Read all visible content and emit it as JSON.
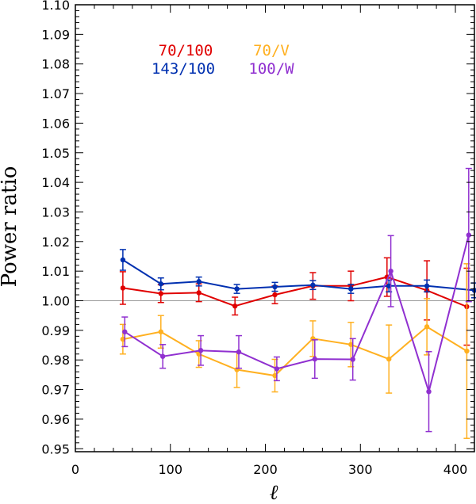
{
  "chart_data": {
    "type": "line",
    "title": "",
    "xlabel": "ℓ",
    "ylabel": "Power ratio",
    "xlim": [
      0,
      420
    ],
    "ylim": [
      0.949,
      1.1
    ],
    "x_ticks": [
      0,
      100,
      200,
      300,
      400
    ],
    "x_tick_labels": [
      "0",
      "100",
      "200",
      "300",
      "400"
    ],
    "y_ticks": [
      0.95,
      0.96,
      0.97,
      0.98,
      0.99,
      1.0,
      1.01,
      1.02,
      1.03,
      1.04,
      1.05,
      1.06,
      1.07,
      1.08,
      1.09,
      1.1
    ],
    "y_tick_labels": [
      "0.95",
      "0.96",
      "0.97",
      "0.98",
      "0.99",
      "1.00",
      "1.01",
      "1.02",
      "1.03",
      "1.04",
      "1.05",
      "1.06",
      "1.07",
      "1.08",
      "1.09",
      "1.10"
    ],
    "reference_line": 1.0,
    "reference_color": "#999999",
    "series": [
      {
        "name": "70/100",
        "color": "#e00000",
        "x": [
          50,
          90,
          130,
          168,
          210,
          250,
          290,
          328,
          370,
          412
        ],
        "y": [
          1.0043,
          1.0024,
          1.0027,
          0.9982,
          1.002,
          1.005,
          1.005,
          1.008,
          1.0035,
          0.998
        ],
        "err": [
          0.0055,
          0.003,
          0.003,
          0.003,
          0.003,
          0.0045,
          0.005,
          0.0065,
          0.01,
          0.013
        ]
      },
      {
        "name": "143/100",
        "color": "#0030b0",
        "x": [
          50,
          90,
          130,
          170,
          210,
          250,
          290,
          330,
          370,
          420
        ],
        "y": [
          1.0138,
          1.0057,
          1.0065,
          1.004,
          1.0047,
          1.0053,
          1.004,
          1.005,
          1.005,
          1.0035
        ],
        "err": [
          0.0035,
          0.002,
          0.0015,
          0.0015,
          0.0015,
          0.0015,
          0.0015,
          0.002,
          0.002,
          0.0025
        ]
      },
      {
        "name": "70/V",
        "color": "#ffb020",
        "x": [
          50,
          90,
          130,
          170,
          210,
          250,
          290,
          330,
          370,
          412
        ],
        "y": [
          0.987,
          0.9895,
          0.982,
          0.9767,
          0.9747,
          0.9872,
          0.9852,
          0.9803,
          0.9912,
          0.983
        ],
        "err": [
          0.005,
          0.0055,
          0.0045,
          0.006,
          0.0055,
          0.006,
          0.0075,
          0.0115,
          0.0095,
          0.0295
        ]
      },
      {
        "name": "100/W",
        "color": "#9030d0",
        "x": [
          52,
          92,
          132,
          172,
          212,
          252,
          292,
          332,
          372,
          414
        ],
        "y": [
          0.9895,
          0.9812,
          0.9832,
          0.9827,
          0.977,
          0.9803,
          0.9802,
          1.01,
          0.9693,
          1.0222
        ],
        "err": [
          0.005,
          0.004,
          0.005,
          0.0055,
          0.004,
          0.0065,
          0.007,
          0.012,
          0.0135,
          0.0225
        ]
      }
    ],
    "legend": {
      "placement": "top-center",
      "entries": [
        {
          "label": "70/100",
          "color": "#e00000"
        },
        {
          "label": "70/V",
          "color": "#ffb020"
        },
        {
          "label": "143/100",
          "color": "#0030b0"
        },
        {
          "label": "100/W",
          "color": "#9030d0"
        }
      ]
    }
  }
}
